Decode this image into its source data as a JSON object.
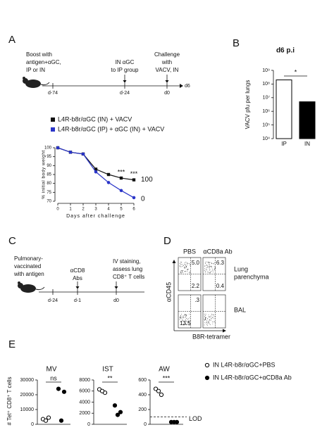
{
  "panel_labels": [
    "A",
    "B",
    "C",
    "D",
    "E"
  ],
  "timeline_a": {
    "events": [
      {
        "label": "d-74",
        "text": [
          "Boost with",
          "antigen+αGC,",
          "IP or IN"
        ]
      },
      {
        "label": "d-24",
        "text": [
          "IN αGC",
          "to IP group"
        ]
      },
      {
        "label": "d0",
        "text": [
          "Challenge",
          "with",
          "VACV, IN"
        ]
      }
    ],
    "end": "d6"
  },
  "timeline_c": {
    "events": [
      {
        "label": "d-24",
        "text": [
          "Pulmonary-",
          "vaccinated",
          "with antigen"
        ]
      },
      {
        "label": "d-1",
        "text": [
          "αCD8",
          "Abs"
        ]
      },
      {
        "label": "d0",
        "text": [
          "IV staining,",
          "assess lung",
          "CD8⁺ T cells"
        ]
      }
    ]
  },
  "flow_d": {
    "columns": [
      "PBS",
      "αCD8a Ab"
    ],
    "y_label": "αCD45",
    "x_label": "B8R-tetramer",
    "rows": [
      {
        "label": [
          "Lung",
          "parenchyma"
        ],
        "plots": [
          [
            {
              "text": "5.0",
              "quadrant": "top-right"
            },
            {
              "text": "2.2",
              "quadrant": "bottom-right"
            }
          ],
          [
            {
              "text": "6.3",
              "quadrant": "top-right"
            },
            {
              "text": "0.4",
              "quadrant": "bottom-right"
            }
          ]
        ]
      },
      {
        "label": [
          "BAL"
        ],
        "plots": [
          [
            {
              "text": ".3",
              "quadrant": "top-right"
            },
            {
              "text": "13.5",
              "quadrant": "bottom-left"
            }
          ],
          []
        ]
      }
    ]
  },
  "chart_data": [
    {
      "type": "line",
      "x": [
        0,
        1,
        2,
        3,
        4,
        5,
        6
      ],
      "xlim": [
        0,
        6
      ],
      "xticks": [
        0,
        1,
        2,
        3,
        4,
        5,
        6
      ],
      "ylim": [
        70,
        100
      ],
      "yticks": [
        70,
        75,
        80,
        85,
        90,
        95,
        100
      ],
      "x_label": "Days after challenge",
      "y_label": "% initial body weight",
      "series": [
        {
          "name": "L4R-b8r/αGC (IN) + VACV",
          "color": "#111111",
          "marker": "square",
          "values": [
            100,
            97.5,
            96.5,
            88,
            85,
            83,
            82
          ],
          "survival": 100
        },
        {
          "name": "L4R-b8r/αGC (IP) + αGC (IN) + VACV",
          "color": "#2a35c8",
          "marker": "circle",
          "values": [
            100,
            97.5,
            96.5,
            86.5,
            80.5,
            76,
            72
          ],
          "survival": 0
        }
      ],
      "annotations": [
        {
          "x": 5,
          "text": "***"
        },
        {
          "x": 6,
          "text": "***"
        }
      ]
    },
    {
      "type": "bar",
      "title": "d6 p.i",
      "categories": [
        "IP",
        "IN"
      ],
      "values": [
        200000000,
        5000000
      ],
      "colors": [
        "#ffffff",
        "#000000"
      ],
      "log_scale": true,
      "ylim": [
        10000,
        1000000000
      ],
      "yticks": [
        {
          "value": 10000,
          "label": "10⁴"
        },
        {
          "value": 100000,
          "label": "10⁵"
        },
        {
          "value": 1000000,
          "label": "10⁶"
        },
        {
          "value": 10000000,
          "label": "10⁷"
        },
        {
          "value": 100000000,
          "label": "10⁸"
        },
        {
          "value": 1000000000,
          "label": "10⁹"
        }
      ],
      "y_label": "VACV pfu per lungs",
      "significance": "*"
    },
    {
      "type": "dot",
      "title": "MV",
      "y_label": "# Tet⁺ CD8⁺ T cells",
      "ylim": [
        0,
        30000
      ],
      "yticks": [
        0,
        10000,
        20000,
        30000
      ],
      "series": [
        {
          "name": "IN L4R-b8r/αGC+PBS",
          "color": "#000000",
          "fill": "#ffffff",
          "values": [
            3500,
            4500,
            2500
          ]
        },
        {
          "name": "IN L4R-b8r/αGC+αCD8a Ab",
          "color": "#000000",
          "fill": "#000000",
          "values": [
            24000,
            22000,
            2500
          ]
        }
      ],
      "significance": "ns"
    },
    {
      "type": "dot",
      "title": "IST",
      "ylim": [
        0,
        8000
      ],
      "yticks": [
        0,
        2000,
        4000,
        6000,
        8000
      ],
      "series": [
        {
          "color": "#000000",
          "fill": "#ffffff",
          "values": [
            6300,
            5700,
            6000
          ]
        },
        {
          "color": "#000000",
          "fill": "#000000",
          "values": [
            3400,
            2200,
            1700
          ]
        }
      ],
      "significance": "**"
    },
    {
      "type": "dot",
      "title": "AW",
      "ylim": [
        0,
        600
      ],
      "yticks": [
        0,
        200,
        400,
        600
      ],
      "series": [
        {
          "color": "#000000",
          "fill": "#ffffff",
          "values": [
            480,
            400,
            450
          ]
        },
        {
          "color": "#000000",
          "fill": "#000000",
          "values": [
            30,
            30,
            30
          ]
        }
      ],
      "significance": "***",
      "lod": 100,
      "lod_label": "LOD"
    }
  ]
}
